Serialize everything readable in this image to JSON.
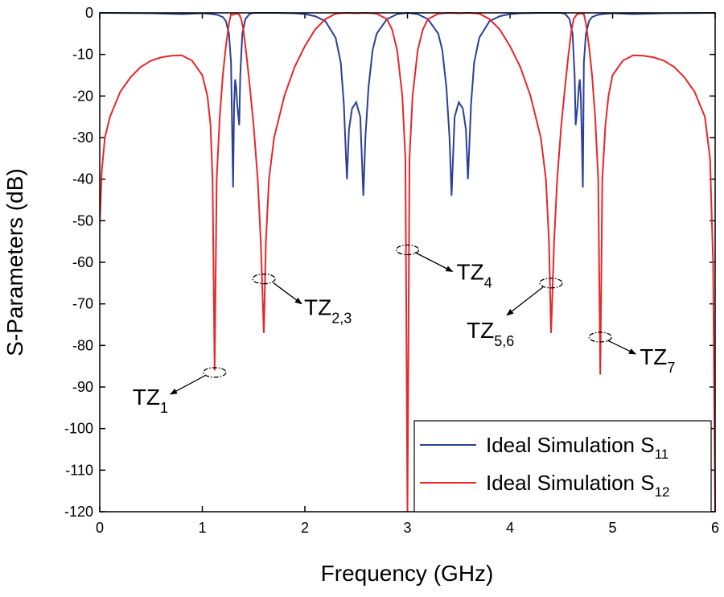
{
  "chart_data": {
    "type": "line",
    "xlabel": "Frequency (GHz)",
    "ylabel": "S-Parameters (dB)",
    "xlim": [
      0,
      6
    ],
    "xticks": [
      0,
      1,
      2,
      3,
      4,
      5,
      6
    ],
    "ylim": [
      -120,
      0
    ],
    "yticks": [
      0,
      -10,
      -20,
      -30,
      -40,
      -50,
      -60,
      -70,
      -80,
      -90,
      -100,
      -110,
      -120
    ],
    "legend": "lower right",
    "series": [
      {
        "name": "Ideal Simulation S",
        "subscript": "11",
        "color": "#2b3f9a",
        "x": [
          0,
          0.5,
          0.8,
          1.0,
          1.1,
          1.15,
          1.2,
          1.23,
          1.26,
          1.28,
          1.3,
          1.31,
          1.32,
          1.33,
          1.34,
          1.36,
          1.37,
          1.39,
          1.42,
          1.46,
          1.5,
          1.7,
          1.9,
          2.0,
          2.1,
          2.2,
          2.3,
          2.35,
          2.38,
          2.41,
          2.43,
          2.46,
          2.5,
          2.54,
          2.57,
          2.59,
          2.62,
          2.66,
          2.7,
          2.8,
          2.9,
          3.0,
          3.1,
          3.2,
          3.3,
          3.34,
          3.38,
          3.41,
          3.43,
          3.46,
          3.5,
          3.54,
          3.57,
          3.59,
          3.62,
          3.65,
          3.7,
          3.8,
          3.9,
          4.0,
          4.1,
          4.3,
          4.5,
          4.54,
          4.58,
          4.61,
          4.63,
          4.64,
          4.66,
          4.67,
          4.68,
          4.69,
          4.7,
          4.71,
          4.72,
          4.74,
          4.77,
          4.8,
          4.85,
          4.9,
          5.0,
          5.2,
          5.5,
          6.0
        ],
        "values": [
          0,
          -0.1,
          -0.3,
          -0.1,
          -0.3,
          -0.5,
          -1,
          -2,
          -5,
          -12,
          -42,
          -22,
          -16,
          -18,
          -22,
          -27,
          -15,
          -5,
          -1.5,
          -0.3,
          0,
          0,
          -0.1,
          -0.3,
          -0.8,
          -2,
          -6,
          -12,
          -22,
          -40,
          -28,
          -23,
          -21.5,
          -25,
          -44,
          -30,
          -18,
          -9,
          -5,
          -1.5,
          -0.3,
          0,
          -0.3,
          -1.5,
          -5,
          -9,
          -18,
          -30,
          -44,
          -25,
          -21.5,
          -23,
          -28,
          -40,
          -22,
          -12,
          -6,
          -2,
          -0.8,
          -0.3,
          -0.1,
          0,
          0,
          -0.3,
          -1.5,
          -5,
          -15,
          -27,
          -22,
          -18,
          -16,
          -20,
          -30,
          -42,
          -12,
          -5,
          -2,
          -1,
          -0.5,
          -0.3,
          -0.1,
          -0.3,
          -0.1,
          0
        ]
      },
      {
        "name": "Ideal Simulation S",
        "subscript": "12",
        "color": "#e8262a",
        "x": [
          0,
          0.02,
          0.05,
          0.1,
          0.2,
          0.3,
          0.4,
          0.5,
          0.6,
          0.7,
          0.8,
          0.9,
          1.0,
          1.05,
          1.08,
          1.1,
          1.12,
          1.14,
          1.17,
          1.2,
          1.23,
          1.26,
          1.28,
          1.3,
          1.33,
          1.36,
          1.38,
          1.4,
          1.43,
          1.46,
          1.5,
          1.54,
          1.57,
          1.59,
          1.6,
          1.62,
          1.65,
          1.7,
          1.8,
          1.9,
          2.0,
          2.1,
          2.2,
          2.3,
          2.4,
          2.5,
          2.6,
          2.7,
          2.8,
          2.85,
          2.9,
          2.95,
          2.98,
          3.0,
          3.02,
          3.05,
          3.1,
          3.15,
          3.2,
          3.3,
          3.4,
          3.5,
          3.6,
          3.7,
          3.8,
          3.9,
          4.0,
          4.1,
          4.2,
          4.3,
          4.35,
          4.38,
          4.4,
          4.41,
          4.43,
          4.46,
          4.5,
          4.54,
          4.57,
          4.6,
          4.62,
          4.65,
          4.68,
          4.72,
          4.74,
          4.77,
          4.8,
          4.83,
          4.86,
          4.88,
          4.9,
          4.93,
          4.96,
          5.0,
          5.1,
          5.2,
          5.3,
          5.4,
          5.5,
          5.6,
          5.7,
          5.8,
          5.9,
          5.95,
          5.98,
          6.0
        ],
        "values": [
          -51,
          -38,
          -30,
          -25,
          -19,
          -15.5,
          -13,
          -11.5,
          -10.7,
          -10.3,
          -10.2,
          -11.5,
          -15,
          -20,
          -27,
          -40,
          -86,
          -40,
          -25,
          -15,
          -8,
          -2.5,
          -0.3,
          -0.5,
          -0.1,
          -0.4,
          -1.5,
          -4,
          -10,
          -17,
          -27,
          -40,
          -55,
          -70,
          -77,
          -55,
          -40,
          -30,
          -20,
          -13,
          -8,
          -4,
          -1.5,
          -0.2,
          0,
          -0.1,
          0,
          -0.2,
          -1.5,
          -4,
          -9,
          -20,
          -35,
          -120,
          -35,
          -20,
          -9,
          -4,
          -1.5,
          -0.2,
          0,
          -0.1,
          0,
          -0.2,
          -1.5,
          -4,
          -8,
          -13,
          -20,
          -30,
          -40,
          -55,
          -77,
          -70,
          -55,
          -40,
          -27,
          -17,
          -10,
          -4,
          -1.5,
          -0.4,
          -0.1,
          -0.3,
          -2.5,
          -8,
          -15,
          -25,
          -40,
          -87,
          -40,
          -27,
          -20,
          -15,
          -11.5,
          -10.2,
          -10.3,
          -10.7,
          -11.5,
          -13,
          -15.5,
          -19,
          -25,
          -35,
          -60,
          -120
        ]
      }
    ],
    "annotations": [
      {
        "text": "TZ",
        "subscript": "1",
        "x": 1.12,
        "y": -86.5
      },
      {
        "text": "TZ",
        "subscript": "2,3",
        "x": 1.6,
        "y": -64
      },
      {
        "text": "TZ",
        "subscript": "4",
        "x": 3.0,
        "y": -57
      },
      {
        "text": "TZ",
        "subscript": "5,6",
        "x": 4.4,
        "y": -65
      },
      {
        "text": "TZ",
        "subscript": "7",
        "x": 4.88,
        "y": -78
      }
    ]
  }
}
